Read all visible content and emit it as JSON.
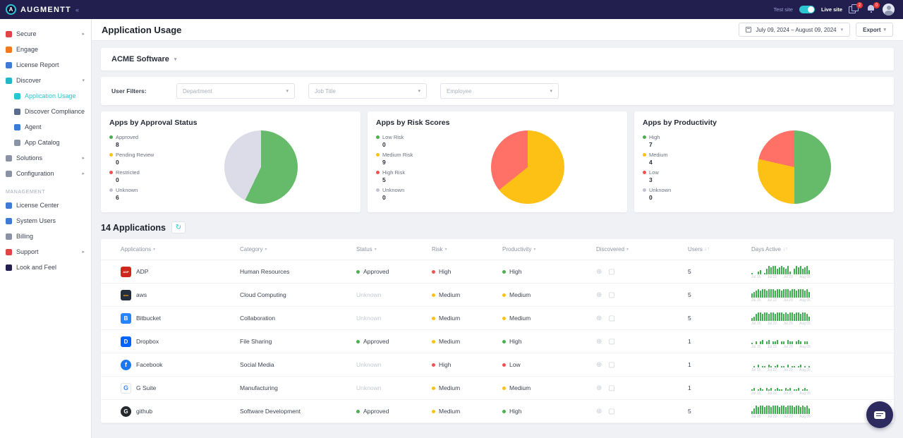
{
  "brand": {
    "name": "AUGMENTT",
    "collapse_icon": "«"
  },
  "topbar": {
    "test_label": "Test site",
    "live_label": "Live site",
    "badge1": "2",
    "badge2": "0"
  },
  "sidebar": {
    "items": [
      {
        "label": "Secure",
        "icon": "shield",
        "color": "#e04545",
        "chevron": "right",
        "indent": 0
      },
      {
        "label": "Engage",
        "icon": "engage",
        "color": "#f2791f",
        "indent": 0
      },
      {
        "label": "License Report",
        "icon": "license-report",
        "color": "#3f7ad6",
        "indent": 0
      },
      {
        "label": "Discover",
        "icon": "discover",
        "color": "#23b8c8",
        "chevron": "down",
        "indent": 0
      },
      {
        "label": "Application Usage",
        "icon": "application-usage",
        "color": "#2cc5d2",
        "indent": 1,
        "active": true
      },
      {
        "label": "Discover Compliance",
        "icon": "discover-compliance",
        "color": "#5a6b8c",
        "indent": 1
      },
      {
        "label": "Agent",
        "icon": "agent",
        "color": "#3f7ad6",
        "indent": 1
      },
      {
        "label": "App Catalog",
        "icon": "app-catalog",
        "color": "#8a93a6",
        "indent": 1
      },
      {
        "label": "Solutions",
        "icon": "solutions",
        "color": "#8a93a6",
        "chevron": "right",
        "indent": 0
      },
      {
        "label": "Configuration",
        "icon": "configuration",
        "color": "#8a93a6",
        "chevron": "right",
        "indent": 0
      }
    ],
    "management_label": "MANAGEMENT",
    "management_items": [
      {
        "label": "License Center",
        "icon": "license-center",
        "color": "#3f7ad6"
      },
      {
        "label": "System Users",
        "icon": "system-users",
        "color": "#3f7ad6"
      },
      {
        "label": "Billing",
        "icon": "billing",
        "color": "#8a93a6"
      },
      {
        "label": "Support",
        "icon": "support",
        "color": "#e04545",
        "chevron": "right"
      },
      {
        "label": "Look and Feel",
        "icon": "look-and-feel",
        "color": "#23204f"
      }
    ]
  },
  "header": {
    "title": "Application Usage",
    "date_range": "July 09, 2024 – August 09, 2024",
    "export_label": "Export"
  },
  "company": {
    "name": "ACME Software"
  },
  "filters": {
    "label": "User Filters:",
    "dropdowns": [
      {
        "placeholder": "Department"
      },
      {
        "placeholder": "Job Title"
      },
      {
        "placeholder": "Employee"
      }
    ]
  },
  "chart_data": [
    {
      "type": "pie",
      "title": "Apps by Approval Status",
      "slices": [
        {
          "label": "Approved",
          "value": 8,
          "color": "#66bb6a",
          "dot": "#4caf50"
        },
        {
          "label": "Pending Review",
          "value": 0,
          "color": "#fdc116",
          "dot": "#fdc116"
        },
        {
          "label": "Restricted",
          "value": 0,
          "color": "#ff7066",
          "dot": "#f05252"
        },
        {
          "label": "Unknown",
          "value": 6,
          "color": "#dcdbe8",
          "dot": "#c3c2d1"
        }
      ]
    },
    {
      "type": "pie",
      "title": "Apps by Risk Scores",
      "slices": [
        {
          "label": "Low Risk",
          "value": 0,
          "color": "#66bb6a",
          "dot": "#4caf50"
        },
        {
          "label": "Medium Risk",
          "value": 9,
          "color": "#fdc116",
          "dot": "#fdc116"
        },
        {
          "label": "High Risk",
          "value": 5,
          "color": "#ff7066",
          "dot": "#f05252"
        },
        {
          "label": "Unknown",
          "value": 0,
          "color": "#dcdbe8",
          "dot": "#c3c2d1"
        }
      ]
    },
    {
      "type": "pie",
      "title": "Apps by Productivity",
      "slices": [
        {
          "label": "High",
          "value": 7,
          "color": "#66bb6a",
          "dot": "#4caf50"
        },
        {
          "label": "Medium",
          "value": 4,
          "color": "#fdc116",
          "dot": "#fdc116"
        },
        {
          "label": "Low",
          "value": 3,
          "color": "#ff7066",
          "dot": "#f05252"
        },
        {
          "label": "Unknown",
          "value": 0,
          "color": "#dcdbe8",
          "dot": "#c3c2d1"
        }
      ]
    }
  ],
  "table": {
    "title": "14 Applications",
    "columns": [
      {
        "label": "Applications",
        "sort": "filter"
      },
      {
        "label": "Category",
        "sort": "filter"
      },
      {
        "label": "Status",
        "sort": "filter"
      },
      {
        "label": "Risk",
        "sort": "filter"
      },
      {
        "label": "Productivity",
        "sort": "filter"
      },
      {
        "label": "Discovered",
        "sort": "filter"
      },
      {
        "label": "Users",
        "sort": "arrows"
      },
      {
        "label": "Days Active",
        "sort": "arrows"
      }
    ],
    "sparkline_axis": [
      "Jul 15",
      "Jul 22",
      "Jul 29",
      "Aug 05"
    ],
    "rows": [
      {
        "app": "ADP",
        "icon_bg": "#d0271d",
        "icon_fg": "#ffffff",
        "icon_text": "ADP",
        "icon_font": 4,
        "icon_round": false,
        "category": "Human Resources",
        "status": "Approved",
        "status_color": "#4caf50",
        "risk": "High",
        "risk_color": "#f05252",
        "productivity": "High",
        "productivity_color": "#4caf50",
        "users": "5",
        "bars": [
          1,
          0,
          0,
          2,
          3,
          0,
          1,
          4,
          6,
          5,
          6,
          6,
          4,
          5,
          6,
          5,
          4,
          6,
          2,
          0,
          4,
          6,
          5,
          6,
          4,
          5,
          6,
          3
        ]
      },
      {
        "app": "aws",
        "icon_bg": "#232f3e",
        "icon_fg": "#ff9900",
        "icon_text": "aws",
        "icon_font": 4,
        "icon_round": false,
        "category": "Cloud Computing",
        "status": "Unknown",
        "status_color": "",
        "risk": "Medium",
        "risk_color": "#fdc116",
        "productivity": "Medium",
        "productivity_color": "#fdc116",
        "users": "5",
        "bars": [
          3,
          4,
          5,
          6,
          5,
          6,
          6,
          5,
          6,
          6,
          6,
          5,
          6,
          6,
          5,
          6,
          6,
          6,
          5,
          6,
          6,
          5,
          6,
          6,
          6,
          5,
          6,
          4
        ]
      },
      {
        "app": "Bitbucket",
        "icon_bg": "#2684ff",
        "icon_fg": "#ffffff",
        "icon_text": "B",
        "icon_font": 8,
        "icon_round": false,
        "category": "Collaboration",
        "status": "Unknown",
        "status_color": "",
        "risk": "Medium",
        "risk_color": "#fdc116",
        "productivity": "Medium",
        "productivity_color": "#fdc116",
        "users": "5",
        "bars": [
          2,
          3,
          5,
          6,
          6,
          5,
          6,
          6,
          5,
          6,
          6,
          5,
          6,
          6,
          6,
          5,
          6,
          5,
          6,
          6,
          5,
          6,
          6,
          5,
          6,
          6,
          5,
          3
        ]
      },
      {
        "app": "Dropbox",
        "icon_bg": "#0062ff",
        "icon_fg": "#ffffff",
        "icon_text": "D",
        "icon_font": 8,
        "icon_round": false,
        "category": "File Sharing",
        "status": "Approved",
        "status_color": "#4caf50",
        "risk": "Medium",
        "risk_color": "#fdc116",
        "productivity": "High",
        "productivity_color": "#4caf50",
        "users": "1",
        "bars": [
          1,
          0,
          2,
          0,
          2,
          3,
          0,
          2,
          3,
          0,
          2,
          2,
          3,
          0,
          2,
          2,
          0,
          3,
          2,
          2,
          0,
          2,
          3,
          2,
          0,
          2,
          2,
          0
        ]
      },
      {
        "app": "Facebook",
        "icon_bg": "#1877f2",
        "icon_fg": "#ffffff",
        "icon_text": "f",
        "icon_font": 9,
        "icon_round": true,
        "category": "Social Media",
        "status": "Unknown",
        "status_color": "",
        "risk": "High",
        "risk_color": "#f05252",
        "productivity": "Low",
        "productivity_color": "#f05252",
        "users": "1",
        "bars": [
          0,
          1,
          0,
          2,
          0,
          1,
          1,
          0,
          2,
          1,
          0,
          1,
          2,
          0,
          1,
          1,
          0,
          2,
          0,
          1,
          1,
          0,
          1,
          2,
          0,
          1,
          0,
          1
        ]
      },
      {
        "app": "G Suite",
        "icon_bg": "#ffffff",
        "icon_fg": "#4285f4",
        "icon_text": "G",
        "icon_font": 9,
        "icon_round": false,
        "icon_border": true,
        "category": "Manufacturing",
        "status": "Unknown",
        "status_color": "",
        "risk": "Medium",
        "risk_color": "#fdc116",
        "productivity": "Medium",
        "productivity_color": "#fdc116",
        "users": "1",
        "bars": [
          1,
          2,
          0,
          1,
          2,
          1,
          0,
          2,
          1,
          2,
          0,
          1,
          2,
          1,
          1,
          0,
          2,
          1,
          2,
          0,
          1,
          1,
          2,
          0,
          1,
          2,
          1,
          0
        ]
      },
      {
        "app": "github",
        "icon_bg": "#24292e",
        "icon_fg": "#ffffff",
        "icon_text": "G",
        "icon_font": 8,
        "icon_round": true,
        "category": "Software Development",
        "status": "Approved",
        "status_color": "#4caf50",
        "risk": "Medium",
        "risk_color": "#fdc116",
        "productivity": "High",
        "productivity_color": "#4caf50",
        "users": "5",
        "bars": [
          2,
          4,
          6,
          5,
          6,
          6,
          5,
          6,
          6,
          5,
          6,
          6,
          6,
          5,
          6,
          6,
          5,
          6,
          6,
          6,
          5,
          6,
          6,
          5,
          6,
          5,
          6,
          4
        ]
      }
    ]
  }
}
